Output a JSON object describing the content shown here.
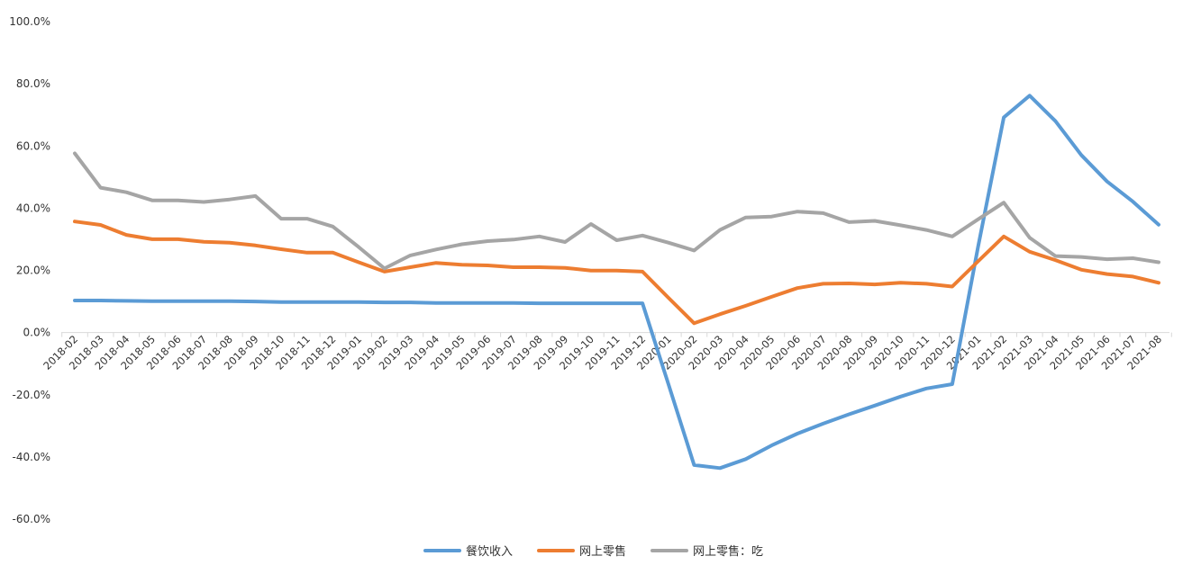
{
  "chart_data": {
    "type": "line",
    "title": "",
    "xlabel": "",
    "ylabel": "",
    "ylim": [
      -60,
      100
    ],
    "y_ticks": [
      -60,
      -40,
      -20,
      0,
      20,
      40,
      60,
      80,
      100
    ],
    "y_tick_labels": [
      "-60.0%",
      "-40.0%",
      "-20.0%",
      "0.0%",
      "20.0%",
      "40.0%",
      "60.0%",
      "80.0%",
      "100.0%"
    ],
    "grid": false,
    "legend_position": "bottom-center",
    "categories": [
      "2018-02",
      "2018-03",
      "2018-04",
      "2018-05",
      "2018-06",
      "2018-07",
      "2018-08",
      "2018-09",
      "2018-10",
      "2018-11",
      "2018-12",
      "2019-01",
      "2019-02",
      "2019-03",
      "2019-04",
      "2019-05",
      "2019-06",
      "2019-07",
      "2019-08",
      "2019-09",
      "2019-10",
      "2019-11",
      "2019-12",
      "2020-01",
      "2020-02",
      "2020-03",
      "2020-04",
      "2020-05",
      "2020-06",
      "2020-07",
      "2020-08",
      "2020-09",
      "2020-10",
      "2020-11",
      "2020-12",
      "2021-01",
      "2021-02",
      "2021-03",
      "2021-04",
      "2021-05",
      "2021-06",
      "2021-07",
      "2021-08"
    ],
    "series": [
      {
        "name": "餐饮收入",
        "color": "#5b9bd5",
        "values": [
          10.3,
          10.3,
          10.2,
          10.1,
          10.1,
          10.1,
          10.1,
          10.0,
          9.8,
          9.8,
          9.8,
          9.8,
          9.7,
          9.7,
          9.5,
          9.5,
          9.5,
          9.5,
          9.4,
          9.4,
          9.4,
          9.4,
          9.4,
          -16.5,
          -42.6,
          -43.6,
          -40.7,
          -36.3,
          -32.5,
          -29.3,
          -26.3,
          -23.5,
          -20.6,
          -18.0,
          -16.6,
          27.5,
          69.2,
          76.2,
          68.0,
          57.1,
          48.6,
          42.1,
          34.7
        ]
      },
      {
        "name": "网上零售",
        "color": "#ed7d31",
        "values": [
          35.7,
          34.6,
          31.4,
          30.0,
          30.0,
          29.2,
          28.9,
          28.0,
          26.8,
          25.7,
          25.7,
          22.6,
          19.6,
          21.0,
          22.4,
          21.8,
          21.6,
          21.0,
          21.0,
          20.8,
          19.9,
          19.9,
          19.6,
          11.2,
          3.0,
          5.9,
          8.6,
          11.5,
          14.3,
          15.7,
          15.8,
          15.5,
          16.0,
          15.7,
          14.8,
          22.9,
          30.9,
          26.0,
          23.3,
          20.2,
          18.8,
          18.0,
          16.0
        ]
      },
      {
        "name": "网上零售：吃",
        "color": "#a5a5a5",
        "values": [
          57.6,
          46.6,
          45.1,
          42.5,
          42.5,
          42.0,
          42.8,
          43.9,
          36.6,
          36.6,
          34.1,
          27.5,
          20.6,
          24.8,
          26.7,
          28.4,
          29.4,
          29.9,
          30.9,
          29.1,
          34.9,
          29.7,
          31.2,
          28.9,
          26.4,
          33.0,
          37.0,
          37.3,
          38.9,
          38.4,
          35.5,
          35.9,
          34.5,
          33.0,
          30.9,
          36.4,
          41.8,
          30.5,
          24.6,
          24.3,
          23.6,
          23.9,
          22.6
        ]
      }
    ]
  }
}
